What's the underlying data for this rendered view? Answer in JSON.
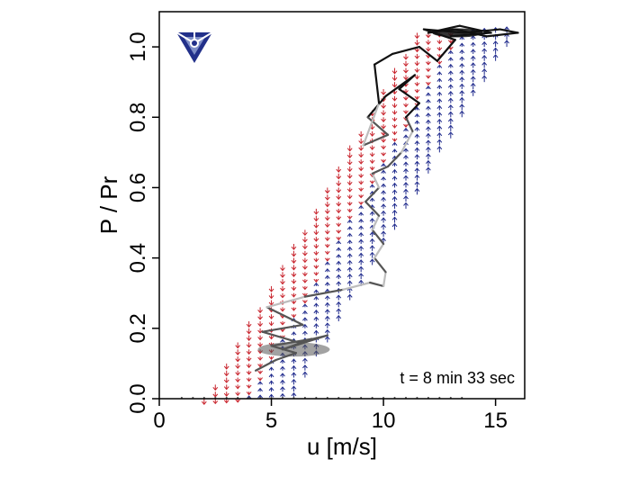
{
  "chart_data": {
    "type": "vector-field-with-trajectory",
    "xlabel": "u [m/s]",
    "ylabel": "P / Pr",
    "xlim": [
      0,
      16.3
    ],
    "ylim": [
      0,
      1.1
    ],
    "x_ticks": [
      0,
      5,
      10,
      15
    ],
    "y_ticks": [
      0.0,
      0.2,
      0.4,
      0.6,
      0.8,
      1.0
    ],
    "grid": false,
    "annotation": "t = 8 min 33 sec",
    "colors": {
      "arrow_down": "#c8232c",
      "arrow_up": "#1f2a8c",
      "trajectory_dark": "#111111",
      "trajectory_mid": "#555555",
      "trajectory_light": "#bdbdbd",
      "logo": "#22308a"
    },
    "logo": "triangle-logo-icon",
    "field": {
      "description_units": "arrows at grid points (u in m/s, P/Pr)",
      "u_step": 0.5,
      "p_step": 0.02,
      "region_below_curve": "up",
      "region_above_curve": "down"
    },
    "trajectory": [
      [
        4.3,
        0.08
      ],
      [
        5.2,
        0.11
      ],
      [
        6.1,
        0.13
      ],
      [
        5.0,
        0.15
      ],
      [
        6.8,
        0.17
      ],
      [
        5.5,
        0.14
      ],
      [
        7.5,
        0.18
      ],
      [
        6.2,
        0.16
      ],
      [
        4.6,
        0.19
      ],
      [
        6.4,
        0.21
      ],
      [
        4.8,
        0.26
      ],
      [
        6.5,
        0.29
      ],
      [
        8.2,
        0.31
      ],
      [
        9.4,
        0.33
      ],
      [
        10.0,
        0.32
      ],
      [
        10.1,
        0.36
      ],
      [
        9.6,
        0.4
      ],
      [
        10.0,
        0.44
      ],
      [
        9.5,
        0.48
      ],
      [
        9.8,
        0.52
      ],
      [
        9.2,
        0.56
      ],
      [
        9.8,
        0.6
      ],
      [
        9.5,
        0.64
      ],
      [
        10.2,
        0.66
      ],
      [
        10.8,
        0.7
      ],
      [
        11.3,
        0.76
      ],
      [
        11.0,
        0.8
      ],
      [
        11.6,
        0.84
      ],
      [
        10.7,
        0.88
      ],
      [
        11.4,
        0.92
      ],
      [
        10.1,
        0.86
      ],
      [
        9.3,
        0.8
      ],
      [
        10.2,
        0.75
      ],
      [
        9.1,
        0.72
      ],
      [
        9.8,
        0.84
      ],
      [
        9.6,
        0.95
      ],
      [
        10.4,
        0.98
      ],
      [
        11.6,
        1.0
      ],
      [
        12.4,
        0.96
      ],
      [
        13.2,
        1.02
      ],
      [
        11.8,
        1.05
      ],
      [
        13.6,
        1.04
      ],
      [
        15.2,
        1.05
      ],
      [
        16.0,
        1.04
      ],
      [
        14.6,
        1.03
      ],
      [
        13.2,
        1.05
      ],
      [
        12.0,
        1.04
      ],
      [
        13.4,
        1.06
      ],
      [
        14.8,
        1.04
      ],
      [
        13.0,
        1.03
      ]
    ]
  }
}
